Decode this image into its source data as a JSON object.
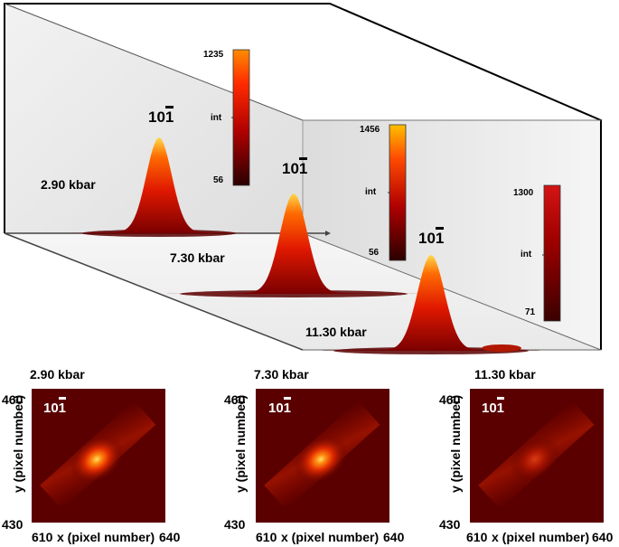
{
  "upper": {
    "peaks": [
      {
        "pressure": "2.90 kbar",
        "reflection": "101",
        "colorbar": {
          "max": "1235",
          "min": "56",
          "label": "int"
        }
      },
      {
        "pressure": "7.30 kbar",
        "reflection": "101",
        "colorbar": {
          "max": "1456",
          "min": "56",
          "label": "int"
        }
      },
      {
        "pressure": "11.30 kbar",
        "reflection": "101",
        "colorbar": {
          "max": "1300",
          "min": "71",
          "label": "int"
        }
      }
    ]
  },
  "lower": {
    "panels": [
      {
        "pressure": "2.90 kbar",
        "reflection": "101",
        "x_min": "610",
        "x_max": "640",
        "y_min": "430",
        "y_max": "460",
        "x_label": "x (pixel number)",
        "y_label": "y (pixel number)",
        "intensity": 1.0
      },
      {
        "pressure": "7.30 kbar",
        "reflection": "101",
        "x_min": "610",
        "x_max": "640",
        "y_min": "430",
        "y_max": "460",
        "x_label": "x (pixel number)",
        "y_label": "y (pixel number)",
        "intensity": 1.0
      },
      {
        "pressure": "11.30 kbar",
        "reflection": "101",
        "x_min": "610",
        "x_max": "640",
        "y_min": "430",
        "y_max": "460",
        "x_label": "x (pixel number)",
        "y_label": "y (pixel number)",
        "intensity": 0.55
      }
    ]
  },
  "colors": {
    "peak_top": "#ffd02a",
    "peak_mid": "#ff3a00",
    "peak_base": "#8a0000",
    "map_bg": "#5a0000"
  }
}
